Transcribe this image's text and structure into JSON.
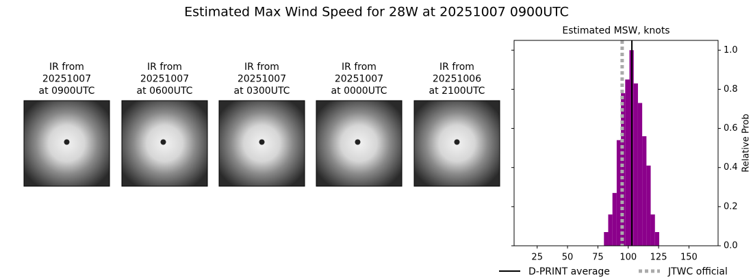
{
  "chart_data": {
    "type": "histogram",
    "title": "Estimated Max Wind Speed for 28W at 20251007 0900UTC",
    "subtitle": "Estimated MSW, knots",
    "y_label": "Relative Prob",
    "panels": [
      {
        "lines": [
          "IR from",
          "20251007",
          "at 0900UTC"
        ]
      },
      {
        "lines": [
          "IR from",
          "20251007",
          "at 0600UTC"
        ]
      },
      {
        "lines": [
          "IR from",
          "20251007",
          "at 0300UTC"
        ]
      },
      {
        "lines": [
          "IR from",
          "20251007",
          "at 0000UTC"
        ]
      },
      {
        "lines": [
          "IR from",
          "20251006",
          "at 2100UTC"
        ]
      }
    ],
    "bins": [
      80,
      83.5,
      87,
      90.5,
      94,
      97.5,
      101,
      104.5,
      108,
      111.5,
      115,
      118.5,
      122,
      125.5
    ],
    "values": [
      0.07,
      0.16,
      0.27,
      0.54,
      0.78,
      0.85,
      1.0,
      0.83,
      0.73,
      0.56,
      0.41,
      0.16,
      0.07
    ],
    "color": "#8b008b",
    "lines": [
      {
        "name": "D-PRINT average",
        "value": 103,
        "color": "#000000",
        "style": "solid"
      },
      {
        "name": "JTWC official",
        "value": 95,
        "color": "#aaaaaa",
        "style": "dotted"
      }
    ],
    "xlim": [
      6,
      174
    ],
    "xticks": [
      25,
      50,
      75,
      100,
      125,
      150
    ],
    "ylim": [
      0,
      1.05
    ],
    "yticks": [
      {
        "value": 0,
        "label": "0.0"
      },
      {
        "value": 0.2,
        "label": "0.2"
      },
      {
        "value": 0.4,
        "label": "0.4"
      },
      {
        "value": 0.6,
        "label": "0.6"
      },
      {
        "value": 0.8,
        "label": "0.8"
      },
      {
        "value": 1.0,
        "label": "1.0"
      }
    ]
  }
}
